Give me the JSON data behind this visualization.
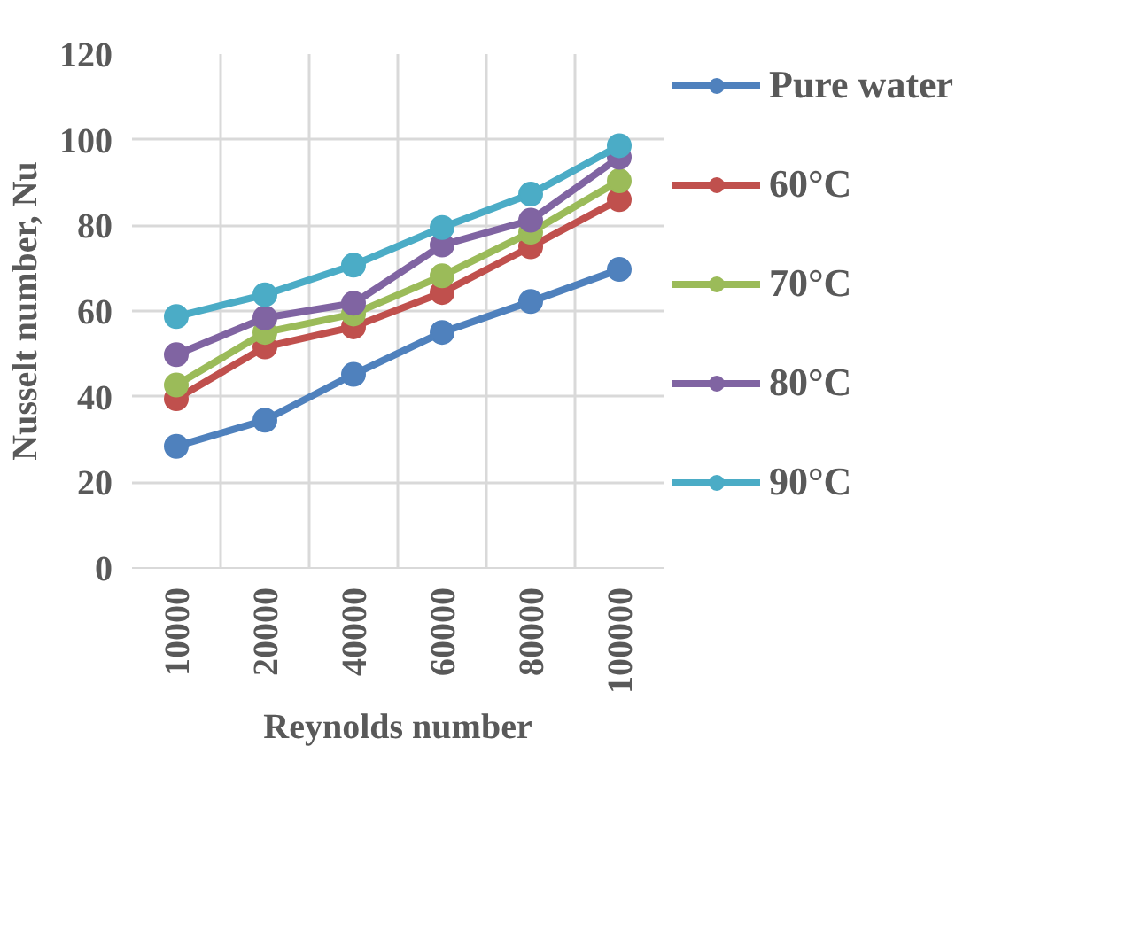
{
  "chart_data": {
    "type": "line",
    "xlabel": "Reynolds number",
    "ylabel": "Nusselt number, Nu",
    "categories": [
      "10000",
      "20000",
      "40000",
      "60000",
      "80000",
      "100000"
    ],
    "series": [
      {
        "name": "Pure water",
        "color": "#4f81bd",
        "values": [
          28.4,
          34.5,
          45.2,
          55,
          62.2,
          69.7
        ]
      },
      {
        "name": "60°C",
        "color": "#c0504d",
        "values": [
          39.5,
          51.6,
          56.3,
          64.3,
          75,
          86
        ]
      },
      {
        "name": "70°C",
        "color": "#9bbb59",
        "values": [
          42.7,
          55,
          59.3,
          68.2,
          78.4,
          90.4
        ]
      },
      {
        "name": "80°C",
        "color": "#8064a2",
        "values": [
          49.8,
          58.4,
          61.8,
          75.4,
          81.2,
          95.9
        ]
      },
      {
        "name": "90°C",
        "color": "#4bacc6",
        "values": [
          58.7,
          63.8,
          70.7,
          79.5,
          87.3,
          98.6
        ]
      }
    ],
    "ylim": [
      0,
      120
    ],
    "yticks": [
      0,
      20,
      40,
      60,
      80,
      100,
      120
    ],
    "grid": true,
    "legend": "right",
    "marker": "circle",
    "line_style": "solid"
  }
}
